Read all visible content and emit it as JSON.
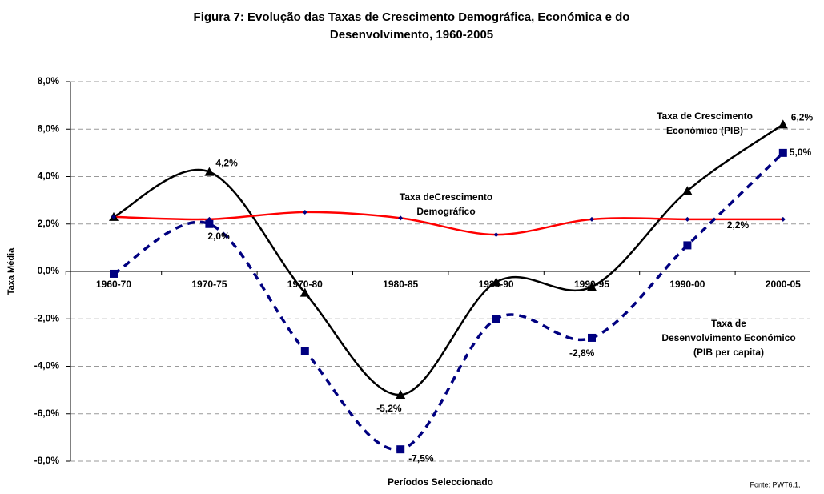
{
  "chart_data": {
    "type": "line",
    "title": [
      "Figura 7: Evolução das Taxas de Crescimento Demográfica, Económica e do",
      "Desenvolvimento, 1960-2005"
    ],
    "x_label": "Períodos Seleccionado",
    "y_label": "Taxa Média",
    "source": "Fonte: PWT6.1,",
    "categories": [
      "1960-70",
      "1970-75",
      "1970-80",
      "1980-85",
      "1980-90",
      "1990-95",
      "1990-00",
      "2000-05"
    ],
    "ylim": [
      -8,
      8
    ],
    "yticks": [
      {
        "value": -8,
        "label": "-8,0%"
      },
      {
        "value": -6,
        "label": "-6,0%"
      },
      {
        "value": -4,
        "label": "-4,0%"
      },
      {
        "value": -2,
        "label": "-2,0%"
      },
      {
        "value": 0,
        "label": "0,0%"
      },
      {
        "value": 2,
        "label": "2,0%"
      },
      {
        "value": 4,
        "label": "4,0%"
      },
      {
        "value": 6,
        "label": "6,0%"
      },
      {
        "value": 8,
        "label": "8,0%"
      }
    ],
    "grid": true,
    "series": [
      {
        "color": "#000000",
        "marker": "triangle",
        "dash": false,
        "values": [
          2.3,
          4.2,
          -0.9,
          -5.2,
          -0.45,
          -0.65,
          3.4,
          6.2
        ],
        "value_labels": [
          null,
          "4,2%",
          null,
          "-5,2%",
          null,
          null,
          null,
          "6,2%"
        ],
        "value_label_colors": [
          null,
          "#000000",
          null,
          "#2b2bd6",
          null,
          null,
          null,
          "#2b2bd6"
        ]
      },
      {
        "color": "#ff0000",
        "marker": "diamond",
        "dash": false,
        "values": [
          2.3,
          2.2,
          2.5,
          2.25,
          1.55,
          2.2,
          2.2,
          2.2
        ],
        "value_labels": [
          null,
          null,
          null,
          null,
          null,
          null,
          null,
          "2,2%"
        ],
        "value_label_colors": [
          null,
          null,
          null,
          null,
          null,
          null,
          null,
          "#000000"
        ]
      },
      {
        "color": "#000080",
        "marker": "square",
        "dash": true,
        "values": [
          -0.1,
          2.0,
          -3.35,
          -7.5,
          -2.0,
          -2.8,
          1.1,
          5.0
        ],
        "value_labels": [
          null,
          "2,0%",
          null,
          "-7,5%",
          null,
          "-2,8%",
          null,
          "5,0%"
        ],
        "value_label_colors": [
          null,
          "#000000",
          null,
          "#000000",
          null,
          "#000000",
          null,
          "#2b2bd6"
        ]
      }
    ],
    "annotations": [
      {
        "lines": [
          "Taxa de Crescimento",
          "Económico (PIB)"
        ],
        "color": "#2b2bd6"
      },
      {
        "lines": [
          "Taxa deCrescimento",
          "Demográfico"
        ],
        "color": "#000000"
      },
      {
        "lines": [
          "Taxa de",
          "Desenvolvimento Económico",
          "(PIB per capita)"
        ],
        "color": "#2b2bd6"
      }
    ]
  }
}
